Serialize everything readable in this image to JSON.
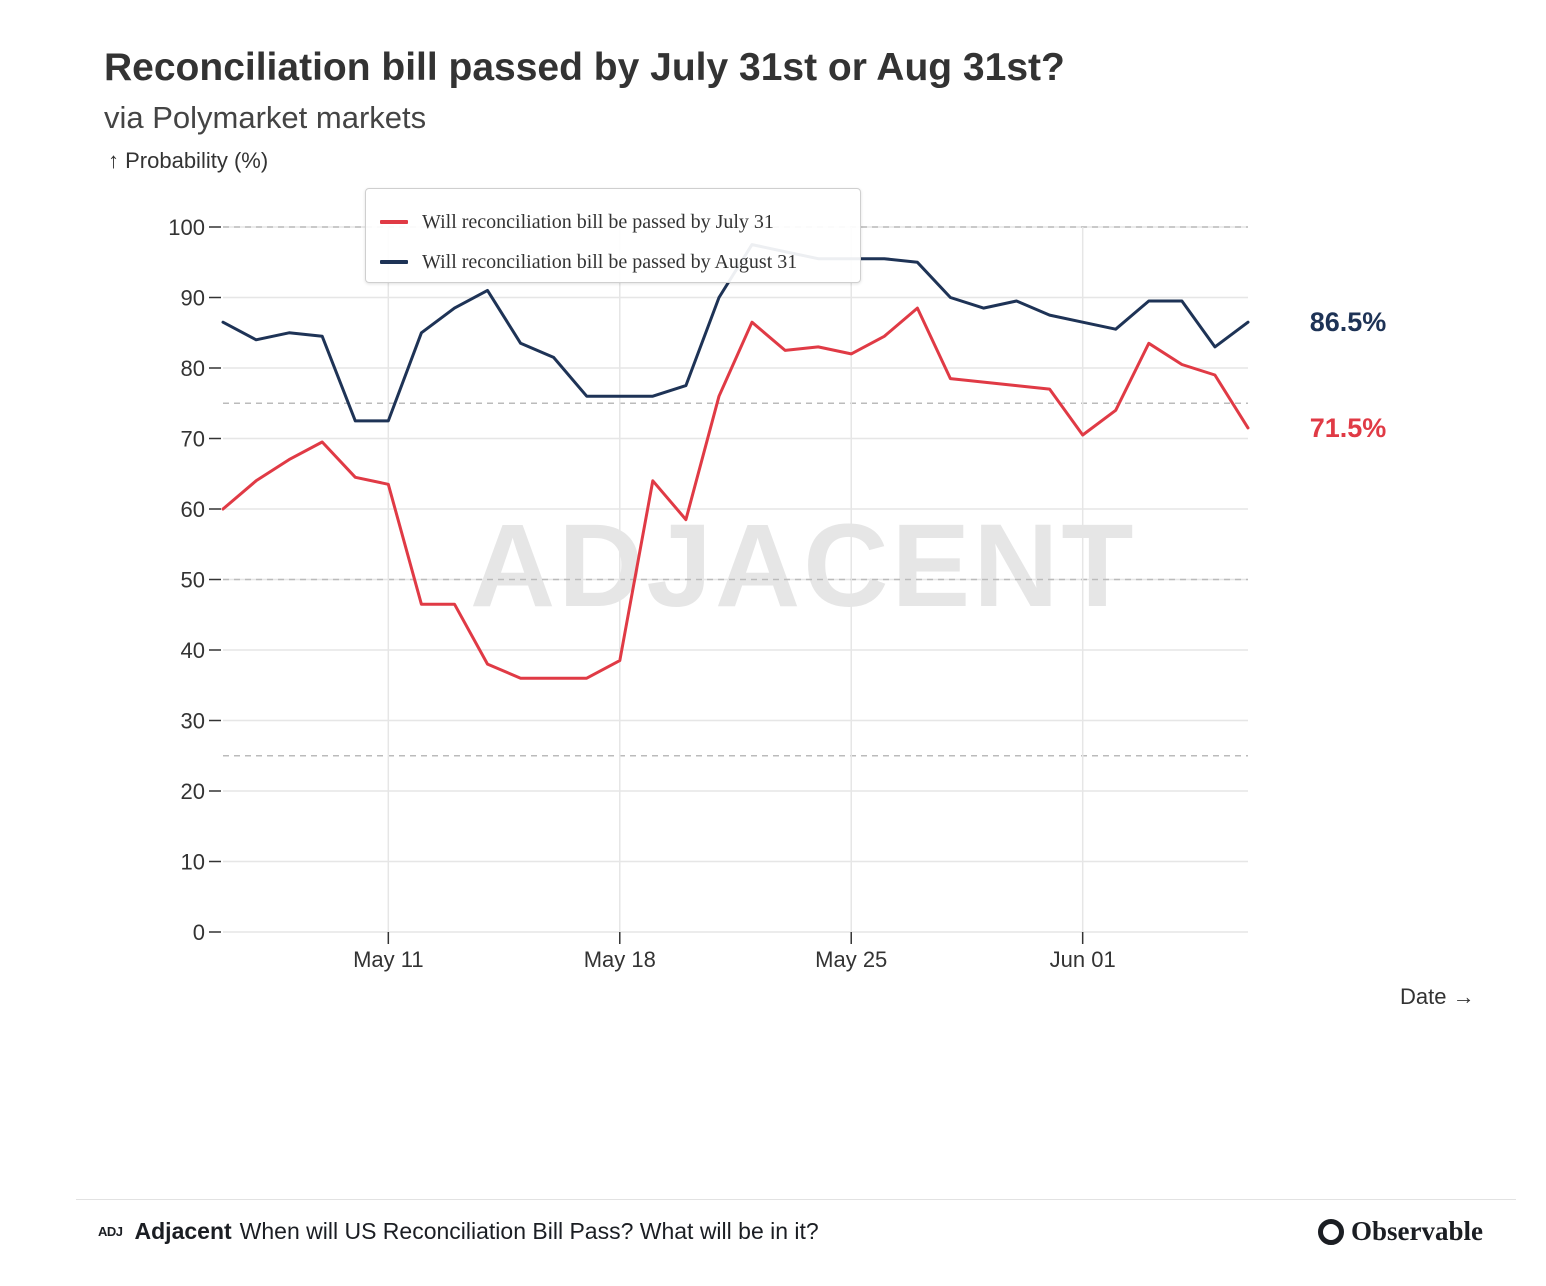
{
  "header": {
    "title": "Reconciliation bill passed by July 31st or Aug 31st?",
    "subtitle": "via Polymarket markets"
  },
  "chart_data": {
    "type": "line",
    "title": "Reconciliation bill passed by July 31st or Aug 31st?",
    "subtitle": "via Polymarket markets",
    "ylabel": "↑ Probability (%)",
    "xlabel": "Date →",
    "ylim": [
      0,
      100
    ],
    "y_ticks": [
      0,
      10,
      20,
      30,
      40,
      50,
      60,
      70,
      80,
      90,
      100
    ],
    "x_start_date": "2025-05-06",
    "x_end_date": "2025-06-06",
    "x_ticks": [
      {
        "date": "2025-05-11",
        "label": "May 11"
      },
      {
        "date": "2025-05-18",
        "label": "May 18"
      },
      {
        "date": "2025-05-25",
        "label": "May 25"
      },
      {
        "date": "2025-06-01",
        "label": "Jun 01"
      }
    ],
    "dashed_reference_lines": [
      25,
      50,
      75,
      100
    ],
    "grid": true,
    "legend_position": "top-left",
    "watermark": "ADJACENT",
    "series": [
      {
        "name": "Will reconciliation bill be passed by July 31",
        "color": "#e03a45",
        "end_label": "71.5%",
        "x": [
          "2025-05-06",
          "2025-05-07",
          "2025-05-08",
          "2025-05-09",
          "2025-05-10",
          "2025-05-11",
          "2025-05-12",
          "2025-05-13",
          "2025-05-14",
          "2025-05-15",
          "2025-05-16",
          "2025-05-17",
          "2025-05-18",
          "2025-05-19",
          "2025-05-20",
          "2025-05-21",
          "2025-05-22",
          "2025-05-23",
          "2025-05-24",
          "2025-05-25",
          "2025-05-26",
          "2025-05-27",
          "2025-05-28",
          "2025-05-29",
          "2025-05-30",
          "2025-05-31",
          "2025-06-01",
          "2025-06-02",
          "2025-06-03",
          "2025-06-04",
          "2025-06-05",
          "2025-06-06"
        ],
        "values": [
          60,
          64,
          67,
          69.5,
          64.5,
          63.5,
          46.5,
          46.5,
          38,
          36,
          36,
          36,
          38.5,
          64,
          58.5,
          76,
          86.5,
          82.5,
          83,
          82,
          84.5,
          88.5,
          78.5,
          78,
          77.5,
          77,
          70.5,
          74,
          83.5,
          80.5,
          79,
          71.5
        ]
      },
      {
        "name": "Will reconciliation bill be passed by August 31",
        "color": "#1e3356",
        "end_label": "86.5%",
        "x": [
          "2025-05-06",
          "2025-05-07",
          "2025-05-08",
          "2025-05-09",
          "2025-05-10",
          "2025-05-11",
          "2025-05-12",
          "2025-05-13",
          "2025-05-14",
          "2025-05-15",
          "2025-05-16",
          "2025-05-17",
          "2025-05-18",
          "2025-05-19",
          "2025-05-20",
          "2025-05-21",
          "2025-05-22",
          "2025-05-23",
          "2025-05-24",
          "2025-05-25",
          "2025-05-26",
          "2025-05-27",
          "2025-05-28",
          "2025-05-29",
          "2025-05-30",
          "2025-05-31",
          "2025-06-01",
          "2025-06-02",
          "2025-06-03",
          "2025-06-04",
          "2025-06-05",
          "2025-06-06"
        ],
        "values": [
          86.5,
          84,
          85,
          84.5,
          72.5,
          72.5,
          85,
          88.5,
          91,
          83.5,
          81.5,
          76,
          76,
          76,
          77.5,
          90,
          97.5,
          96.5,
          95.5,
          95.5,
          95.5,
          95,
          90,
          88.5,
          89.5,
          87.5,
          86.5,
          85.5,
          89.5,
          89.5,
          83,
          86.5
        ]
      }
    ]
  },
  "footer": {
    "logo": "ADJ",
    "brand": "Adjacent",
    "text": "When will US Reconciliation Bill Pass? What will be in it?",
    "observable": "Observable"
  }
}
